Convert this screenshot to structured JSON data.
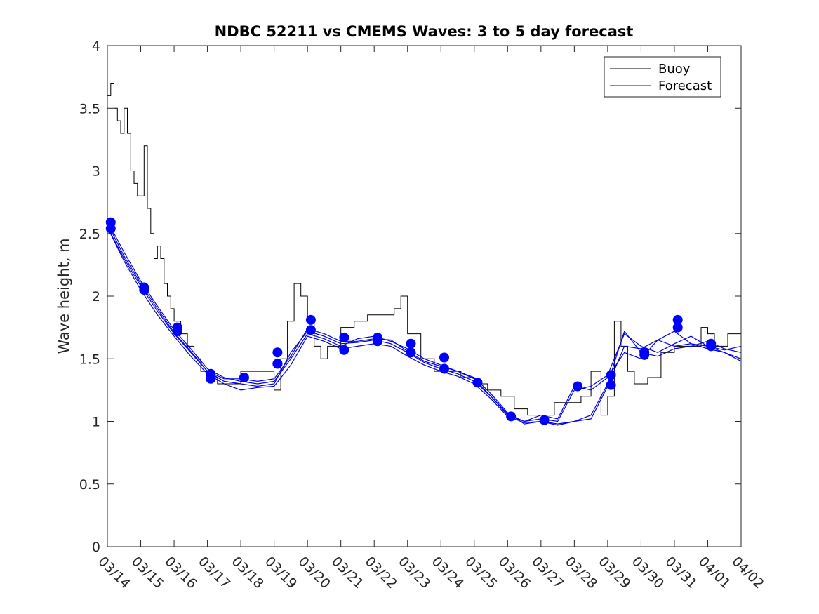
{
  "chart_data": {
    "type": "line",
    "title": "NDBC 52211 vs CMEMS Waves: 3 to 5 day forecast",
    "xlabel": "",
    "ylabel": "Wave height, m",
    "ylim": [
      0,
      4
    ],
    "yticks": [
      0,
      0.5,
      1,
      1.5,
      2,
      2.5,
      3,
      3.5,
      4
    ],
    "xlim": [
      0,
      19
    ],
    "xtick_labels": [
      "03/14",
      "03/15",
      "03/16",
      "03/17",
      "03/18",
      "03/19",
      "03/20",
      "03/21",
      "03/22",
      "03/23",
      "03/24",
      "03/25",
      "03/26",
      "03/27",
      "03/28",
      "03/29",
      "03/30",
      "03/31",
      "04/01",
      "04/02"
    ],
    "legend": {
      "placement": "top-right",
      "entries": [
        "Buoy",
        "Forecast"
      ]
    },
    "colors": {
      "buoy": "#000000",
      "forecast": "#0000e0",
      "markers": "#0000ff"
    },
    "buoy_series": {
      "name": "Buoy",
      "x": [
        0,
        0.1,
        0.2,
        0.3,
        0.4,
        0.5,
        0.6,
        0.7,
        0.8,
        0.9,
        1.0,
        1.1,
        1.2,
        1.3,
        1.4,
        1.5,
        1.6,
        1.7,
        1.8,
        1.9,
        2.0,
        2.2,
        2.4,
        2.6,
        2.8,
        3.0,
        3.3,
        3.6,
        4.0,
        4.5,
        5.0,
        5.2,
        5.4,
        5.6,
        5.8,
        6.0,
        6.2,
        6.4,
        6.6,
        7.0,
        7.4,
        7.8,
        8.2,
        8.6,
        8.8,
        9.0,
        9.4,
        9.8,
        10.2,
        10.6,
        11.0,
        11.4,
        11.8,
        12.2,
        12.6,
        13.0,
        13.4,
        13.8,
        14.2,
        14.5,
        14.8,
        15.0,
        15.2,
        15.4,
        15.6,
        15.8,
        16.0,
        16.2,
        16.6,
        17.0,
        17.4,
        17.8,
        18.0,
        18.2,
        18.6,
        19.0
      ],
      "y": [
        3.6,
        3.7,
        3.5,
        3.4,
        3.3,
        3.5,
        3.3,
        3.0,
        2.9,
        2.8,
        2.8,
        3.2,
        2.7,
        2.5,
        2.3,
        2.4,
        2.3,
        2.1,
        2.0,
        1.9,
        1.8,
        1.7,
        1.6,
        1.5,
        1.4,
        1.35,
        1.3,
        1.3,
        1.4,
        1.4,
        1.25,
        1.5,
        1.8,
        2.1,
        2.0,
        1.8,
        1.6,
        1.5,
        1.6,
        1.75,
        1.8,
        1.85,
        1.85,
        1.9,
        2.0,
        1.7,
        1.5,
        1.4,
        1.4,
        1.35,
        1.3,
        1.25,
        1.2,
        1.1,
        1.05,
        1.05,
        1.15,
        1.15,
        1.2,
        1.4,
        1.05,
        1.2,
        1.8,
        1.6,
        1.4,
        1.3,
        1.3,
        1.35,
        1.55,
        1.6,
        1.6,
        1.75,
        1.7,
        1.6,
        1.7,
        1.6
      ]
    },
    "forecast_series": [
      {
        "name": "Forecast",
        "x": [
          0,
          0.5,
          1,
          1.5,
          2,
          2.5,
          3,
          3.5,
          4,
          4.5,
          5,
          5.5,
          6,
          6.5,
          7,
          7.5,
          8,
          8.5,
          9,
          9.5,
          10,
          10.5,
          11,
          11.5,
          12,
          12.5,
          13,
          13.5,
          14,
          14.5,
          15,
          15.5,
          16,
          16.5,
          17,
          17.5,
          18,
          18.5,
          19
        ],
        "y": [
          2.55,
          2.3,
          2.08,
          1.88,
          1.7,
          1.55,
          1.4,
          1.32,
          1.3,
          1.28,
          1.3,
          1.55,
          1.72,
          1.68,
          1.62,
          1.63,
          1.65,
          1.62,
          1.55,
          1.47,
          1.42,
          1.38,
          1.32,
          1.2,
          1.05,
          1.0,
          1.02,
          1.0,
          1.25,
          1.28,
          1.37,
          1.7,
          1.6,
          1.55,
          1.62,
          1.68,
          1.6,
          1.55,
          1.5
        ]
      },
      {
        "name": "Forecast",
        "x": [
          0,
          0.5,
          1,
          1.5,
          2,
          2.5,
          3,
          3.5,
          4,
          4.5,
          5,
          5.5,
          6,
          6.5,
          7,
          7.5,
          8,
          8.5,
          9,
          9.5,
          10,
          10.5,
          11,
          11.5,
          12,
          12.5,
          13,
          13.5,
          14,
          14.5,
          15,
          15.5,
          16,
          16.5,
          17,
          17.5,
          18,
          18.5,
          19
        ],
        "y": [
          2.6,
          2.35,
          2.12,
          1.92,
          1.73,
          1.58,
          1.42,
          1.35,
          1.32,
          1.3,
          1.32,
          1.5,
          1.7,
          1.66,
          1.6,
          1.66,
          1.68,
          1.64,
          1.58,
          1.5,
          1.45,
          1.4,
          1.35,
          1.22,
          1.07,
          0.98,
          1.0,
          0.98,
          1.0,
          1.05,
          1.3,
          1.72,
          1.55,
          1.52,
          1.58,
          1.6,
          1.64,
          1.58,
          1.55
        ]
      },
      {
        "name": "Forecast",
        "x": [
          0,
          0.5,
          1,
          1.5,
          2,
          2.5,
          3,
          3.5,
          4,
          4.5,
          5,
          5.5,
          6,
          6.5,
          7,
          7.5,
          8,
          8.5,
          9,
          9.5,
          10,
          10.5,
          11,
          11.5,
          12,
          12.5,
          13,
          13.5,
          14,
          14.5,
          15,
          15.5,
          16,
          16.5,
          17,
          17.5,
          18,
          18.5,
          19
        ],
        "y": [
          2.55,
          2.28,
          2.05,
          1.85,
          1.68,
          1.52,
          1.38,
          1.3,
          1.25,
          1.27,
          1.28,
          1.45,
          1.68,
          1.64,
          1.58,
          1.6,
          1.62,
          1.6,
          1.52,
          1.45,
          1.4,
          1.36,
          1.3,
          1.18,
          1.04,
          0.99,
          1.0,
          0.97,
          1.0,
          1.02,
          1.28,
          1.6,
          1.58,
          1.65,
          1.6,
          1.62,
          1.58,
          1.55,
          1.48
        ]
      },
      {
        "name": "Forecast",
        "x": [
          0,
          0.5,
          1,
          1.5,
          2,
          2.5,
          3,
          3.5,
          4,
          4.5,
          5,
          5.5,
          6,
          6.5,
          7,
          7.5,
          8,
          8.5,
          9,
          9.5,
          10,
          10.5,
          11,
          11.5,
          12,
          12.5,
          13,
          13.5,
          14,
          14.5,
          15,
          15.5,
          16,
          16.5,
          17,
          17.5,
          18,
          18.5,
          19
        ],
        "y": [
          2.58,
          2.32,
          2.1,
          1.9,
          1.71,
          1.56,
          1.4,
          1.34,
          1.34,
          1.32,
          1.34,
          1.52,
          1.74,
          1.7,
          1.64,
          1.64,
          1.66,
          1.65,
          1.56,
          1.48,
          1.44,
          1.4,
          1.34,
          1.2,
          1.06,
          1.0,
          1.05,
          1.02,
          1.28,
          1.25,
          1.35,
          1.55,
          1.5,
          1.65,
          1.72,
          1.62,
          1.6,
          1.57,
          1.6
        ]
      }
    ],
    "markers": {
      "x": [
        0.1,
        0.1,
        1.1,
        1.1,
        2.1,
        2.1,
        3.1,
        3.1,
        4.1,
        5.1,
        5.1,
        5.1,
        6.1,
        6.1,
        7.1,
        7.1,
        8.1,
        8.1,
        9.1,
        9.1,
        10.1,
        10.1,
        11.1,
        12.1,
        13.1,
        14.1,
        15.1,
        15.1,
        16.1,
        16.1,
        17.1,
        17.1,
        18.1,
        18.1
      ],
      "y": [
        2.59,
        2.54,
        2.07,
        2.05,
        1.75,
        1.72,
        1.38,
        1.34,
        1.35,
        1.55,
        1.46,
        1.46,
        1.81,
        1.73,
        1.67,
        1.57,
        1.67,
        1.64,
        1.62,
        1.55,
        1.51,
        1.42,
        1.31,
        1.04,
        1.01,
        1.28,
        1.37,
        1.29,
        1.55,
        1.53,
        1.81,
        1.75,
        1.62,
        1.6
      ]
    }
  }
}
